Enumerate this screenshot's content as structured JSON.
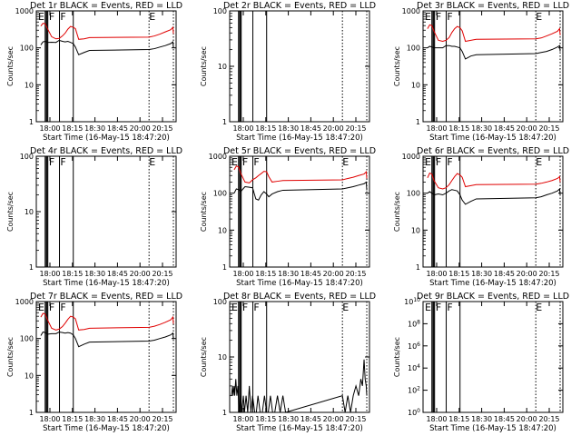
{
  "figure": {
    "title_suffix": " BLACK = Events, RED = LLD",
    "xlabel": "Start Time (16-May-15 18:47:20)",
    "ylabel": "Counts/sec",
    "colors": {
      "events": "#000000",
      "lld": "#e00000",
      "axis": "#000000",
      "background": "#ffffff"
    }
  },
  "chart_data": [
    {
      "type": "line",
      "detector": "Det 1r",
      "title": "Det 1r BLACK = Events, RED = LLD",
      "xlim": [
        17.917,
        20.5
      ],
      "yscale": "log",
      "ylim": [
        1,
        1000
      ],
      "x_ticks": [
        "18:00",
        "18:15",
        "18:30",
        "18:45",
        "20:00",
        "20:15"
      ],
      "y_ticks": [
        "1",
        "10",
        "100",
        "1000"
      ],
      "markers": {
        "E": [
          17.95,
          20.0
        ],
        "F": [
          18.15,
          18.36
        ]
      },
      "solid_lines": [
        18.08,
        18.1,
        18.115,
        18.13,
        18.345,
        18.6
      ],
      "dotted_lines": [
        20.0,
        20.45
      ],
      "series": [
        {
          "name": "Events",
          "x": [
            18.0,
            18.04,
            18.08,
            18.12,
            18.2,
            18.28,
            18.34,
            18.4,
            18.45,
            18.5,
            18.55,
            18.6,
            18.64,
            18.7,
            18.8,
            18.9,
            20.0,
            20.1,
            20.2,
            20.3,
            20.4,
            20.44,
            20.45
          ],
          "y": [
            120,
            145,
            150,
            140,
            142,
            140,
            160,
            150,
            145,
            150,
            140,
            130,
            105,
            65,
            75,
            85,
            90,
            95,
            105,
            115,
            130,
            145,
            100
          ]
        },
        {
          "name": "LLD",
          "x": [
            18.0,
            18.04,
            18.08,
            18.12,
            18.2,
            18.28,
            18.34,
            18.4,
            18.45,
            18.5,
            18.55,
            18.6,
            18.64,
            18.7,
            18.8,
            18.9,
            20.0,
            20.1,
            20.2,
            20.3,
            20.4,
            20.44,
            20.45
          ],
          "y": [
            390,
            460,
            450,
            340,
            200,
            175,
            180,
            210,
            250,
            320,
            380,
            360,
            330,
            170,
            175,
            190,
            195,
            210,
            235,
            270,
            310,
            360,
            240
          ]
        }
      ]
    },
    {
      "type": "line",
      "detector": "Det 2r",
      "title": "Det 2r BLACK = Events, RED = LLD",
      "xlim": [
        17.917,
        20.5
      ],
      "yscale": "log",
      "ylim": [
        1,
        100
      ],
      "x_ticks": [
        "18:00",
        "18:15",
        "18:30",
        "18:45",
        "20:00",
        "20:15"
      ],
      "y_ticks": [
        "1",
        "10",
        "100"
      ],
      "markers": {},
      "solid_lines": [
        18.08,
        18.1,
        18.115,
        18.13,
        18.345,
        18.6
      ],
      "dotted_lines": [
        20.0,
        20.45
      ],
      "series": []
    },
    {
      "type": "line",
      "detector": "Det 3r",
      "title": "Det 3r BLACK = Events, RED = LLD",
      "xlim": [
        17.917,
        20.5
      ],
      "yscale": "log",
      "ylim": [
        1,
        1000
      ],
      "x_ticks": [
        "18:00",
        "18:15",
        "18:30",
        "18:45",
        "20:00",
        "20:15"
      ],
      "y_ticks": [
        "1",
        "10",
        "100",
        "1000"
      ],
      "markers": {
        "E": [
          17.95,
          20.0
        ],
        "F": [
          18.15,
          18.36
        ]
      },
      "solid_lines": [
        18.08,
        18.1,
        18.115,
        18.13,
        18.345,
        18.6
      ],
      "dotted_lines": [
        20.0,
        20.45
      ],
      "series": [
        {
          "name": "Events",
          "x": [
            18.0,
            18.04,
            18.08,
            18.12,
            18.2,
            18.28,
            18.34,
            18.4,
            18.45,
            18.5,
            18.55,
            18.6,
            18.64,
            18.7,
            18.8,
            18.9,
            20.0,
            20.1,
            20.2,
            20.3,
            20.4,
            20.44,
            20.45
          ],
          "y": [
            100,
            110,
            105,
            100,
            100,
            100,
            115,
            115,
            110,
            110,
            105,
            100,
            80,
            50,
            60,
            65,
            70,
            75,
            80,
            90,
            105,
            115,
            80
          ]
        },
        {
          "name": "LLD",
          "x": [
            18.0,
            18.04,
            18.08,
            18.12,
            18.2,
            18.28,
            18.34,
            18.4,
            18.45,
            18.5,
            18.55,
            18.6,
            18.64,
            18.7,
            18.8,
            18.9,
            20.0,
            20.1,
            20.2,
            20.3,
            20.4,
            20.44,
            20.45
          ],
          "y": [
            330,
            420,
            400,
            280,
            160,
            150,
            160,
            190,
            260,
            330,
            380,
            350,
            290,
            150,
            160,
            170,
            175,
            185,
            210,
            240,
            280,
            330,
            220
          ]
        }
      ]
    },
    {
      "type": "line",
      "detector": "Det 4r",
      "title": "Det 4r BLACK = Events, RED = LLD",
      "xlim": [
        17.917,
        20.5
      ],
      "yscale": "log",
      "ylim": [
        1,
        100
      ],
      "x_ticks": [
        "18:00",
        "18:15",
        "18:30",
        "18:45",
        "20:00",
        "20:15"
      ],
      "y_ticks": [
        "1",
        "10",
        "100"
      ],
      "markers": {
        "E": [
          20.0
        ],
        "F": [
          18.15,
          18.36
        ]
      },
      "solid_lines": [
        18.08,
        18.1,
        18.115,
        18.13,
        18.345,
        18.6
      ],
      "dotted_lines": [
        20.0,
        20.45
      ],
      "series": []
    },
    {
      "type": "line",
      "detector": "Det 5r",
      "title": "Det 5r BLACK = Events, RED = LLD",
      "xlim": [
        17.917,
        20.5
      ],
      "yscale": "log",
      "ylim": [
        1,
        1000
      ],
      "x_ticks": [
        "18:00",
        "18:15",
        "18:30",
        "18:45",
        "20:00",
        "20:15"
      ],
      "y_ticks": [
        "1",
        "10",
        "100",
        "1000"
      ],
      "markers": {
        "E": [
          17.95,
          20.0
        ],
        "F": [
          18.15,
          18.36
        ]
      },
      "solid_lines": [
        18.08,
        18.1,
        18.115,
        18.13,
        18.345,
        18.6
      ],
      "dotted_lines": [
        20.0,
        20.45
      ],
      "series": [
        {
          "name": "Events",
          "x": [
            18.0,
            18.04,
            18.08,
            18.12,
            18.2,
            18.28,
            18.34,
            18.4,
            18.45,
            18.5,
            18.55,
            18.6,
            18.64,
            18.7,
            18.8,
            18.9,
            20.0,
            20.1,
            20.2,
            20.3,
            20.4,
            20.44,
            20.45
          ],
          "y": [
            100,
            130,
            125,
            110,
            150,
            145,
            140,
            70,
            65,
            90,
            110,
            95,
            80,
            95,
            110,
            120,
            130,
            140,
            150,
            165,
            180,
            200,
            120
          ]
        },
        {
          "name": "LLD",
          "x": [
            18.0,
            18.04,
            18.08,
            18.12,
            18.2,
            18.28,
            18.34,
            18.4,
            18.45,
            18.5,
            18.55,
            18.6,
            18.64,
            18.7,
            18.8,
            18.9,
            20.0,
            20.1,
            20.2,
            20.3,
            20.4,
            20.44,
            20.45
          ],
          "y": [
            430,
            540,
            520,
            350,
            200,
            190,
            230,
            260,
            300,
            340,
            390,
            380,
            280,
            200,
            210,
            220,
            230,
            250,
            270,
            300,
            330,
            380,
            250
          ]
        }
      ]
    },
    {
      "type": "line",
      "detector": "Det 6r",
      "title": "Det 6r BLACK = Events, RED = LLD",
      "xlim": [
        17.917,
        20.5
      ],
      "yscale": "log",
      "ylim": [
        1,
        1000
      ],
      "x_ticks": [
        "18:00",
        "18:15",
        "18:30",
        "18:45",
        "20:00",
        "20:15"
      ],
      "y_ticks": [
        "1",
        "10",
        "100",
        "1000"
      ],
      "markers": {
        "E": [
          17.95,
          20.0
        ],
        "F": [
          18.15,
          18.36
        ]
      },
      "solid_lines": [
        18.08,
        18.1,
        18.115,
        18.13,
        18.345,
        18.6
      ],
      "dotted_lines": [
        20.0,
        20.45
      ],
      "series": [
        {
          "name": "Events",
          "x": [
            18.0,
            18.04,
            18.08,
            18.12,
            18.2,
            18.28,
            18.34,
            18.4,
            18.45,
            18.5,
            18.55,
            18.6,
            18.64,
            18.7,
            18.8,
            18.9,
            20.0,
            20.1,
            20.2,
            20.3,
            20.4,
            20.44,
            20.45
          ],
          "y": [
            100,
            110,
            100,
            90,
            95,
            90,
            100,
            115,
            125,
            120,
            115,
            90,
            65,
            50,
            60,
            70,
            75,
            80,
            90,
            100,
            115,
            130,
            90
          ]
        },
        {
          "name": "LLD",
          "x": [
            18.0,
            18.04,
            18.08,
            18.12,
            18.2,
            18.28,
            18.34,
            18.4,
            18.45,
            18.5,
            18.55,
            18.6,
            18.64,
            18.7,
            18.8,
            18.9,
            20.0,
            20.1,
            20.2,
            20.3,
            20.4,
            20.44,
            20.45
          ],
          "y": [
            260,
            350,
            330,
            220,
            140,
            130,
            140,
            170,
            220,
            280,
            340,
            310,
            270,
            150,
            160,
            170,
            175,
            185,
            200,
            220,
            250,
            280,
            200
          ]
        }
      ]
    },
    {
      "type": "line",
      "detector": "Det 7r",
      "title": "Det 7r BLACK = Events, RED = LLD",
      "xlim": [
        17.917,
        20.5
      ],
      "yscale": "log",
      "ylim": [
        1,
        1000
      ],
      "x_ticks": [
        "18:00",
        "18:15",
        "18:30",
        "18:45",
        "20:00",
        "20:15"
      ],
      "y_ticks": [
        "1",
        "10",
        "100",
        "1000"
      ],
      "markers": {
        "E": [
          17.95
        ],
        "F": [
          18.15,
          18.36
        ]
      },
      "solid_lines": [
        18.08,
        18.1,
        18.115,
        18.13,
        18.345,
        18.6
      ],
      "dotted_lines": [
        20.0,
        20.45
      ],
      "series": [
        {
          "name": "Events",
          "x": [
            18.0,
            18.04,
            18.08,
            18.12,
            18.2,
            18.28,
            18.34,
            18.4,
            18.45,
            18.5,
            18.55,
            18.6,
            18.64,
            18.7,
            18.8,
            18.9,
            20.0,
            20.1,
            20.2,
            20.3,
            20.4,
            20.44,
            20.45
          ],
          "y": [
            120,
            150,
            145,
            130,
            135,
            135,
            150,
            145,
            140,
            145,
            140,
            125,
            100,
            60,
            70,
            80,
            85,
            90,
            100,
            110,
            125,
            140,
            95
          ]
        },
        {
          "name": "LLD",
          "x": [
            18.0,
            18.04,
            18.08,
            18.12,
            18.2,
            18.28,
            18.34,
            18.4,
            18.45,
            18.5,
            18.55,
            18.6,
            18.64,
            18.7,
            18.8,
            18.9,
            20.0,
            20.1,
            20.2,
            20.3,
            20.4,
            20.44,
            20.45
          ],
          "y": [
            380,
            480,
            460,
            330,
            190,
            170,
            180,
            210,
            260,
            330,
            400,
            380,
            340,
            170,
            175,
            190,
            200,
            215,
            240,
            275,
            320,
            380,
            250
          ]
        }
      ]
    },
    {
      "type": "line",
      "detector": "Det 8r",
      "title": "Det 8r BLACK = Events, RED = LLD",
      "xlim": [
        17.917,
        20.5
      ],
      "yscale": "log",
      "ylim": [
        1,
        100
      ],
      "x_ticks": [
        "18:00",
        "18:15",
        "18:30",
        "18:45",
        "20:00",
        "20:15"
      ],
      "y_ticks": [
        "1",
        "10",
        "100"
      ],
      "markers": {
        "E": [
          17.95,
          20.0
        ],
        "F": [
          18.15,
          18.36
        ]
      },
      "solid_lines": [
        18.08,
        18.1,
        18.115,
        18.13,
        18.345,
        18.6
      ],
      "dotted_lines": [
        20.0,
        20.45
      ],
      "series": [
        {
          "name": "Events",
          "x": [
            17.95,
            17.97,
            17.98,
            18.0,
            18.01,
            18.03,
            18.05,
            18.07,
            18.09,
            18.12,
            18.14,
            18.17,
            18.19,
            18.22,
            18.25,
            18.28,
            18.31,
            18.34,
            18.38,
            18.41,
            18.44,
            18.48,
            18.52,
            18.56,
            18.6,
            18.63,
            18.67,
            18.71,
            18.75,
            18.8,
            18.85,
            18.9,
            18.95,
            20.0,
            20.05,
            20.1,
            20.15,
            20.2,
            20.25,
            20.3,
            20.34,
            20.37,
            20.4,
            20.42,
            20.44,
            20.45
          ],
          "y": [
            2,
            3,
            2,
            3,
            2,
            4,
            2,
            3,
            1,
            2,
            1,
            2,
            1,
            2,
            1,
            3,
            1,
            2,
            1,
            1,
            2,
            1,
            1,
            2,
            1,
            1,
            2,
            1,
            1,
            2,
            1,
            2,
            1,
            2,
            1,
            2,
            1,
            2,
            3,
            2,
            4,
            3,
            9,
            4,
            3,
            2
          ]
        }
      ]
    },
    {
      "type": "line",
      "detector": "Det 9r",
      "title": "Det 9r BLACK = Events, RED = LLD",
      "xlim": [
        17.917,
        20.5
      ],
      "yscale": "log",
      "ylim": [
        1,
        10000000000.0
      ],
      "x_ticks": [
        "18:00",
        "18:15",
        "18:30",
        "18:45",
        "20:00",
        "20:15"
      ],
      "y_ticks": [
        "10^0",
        "10^2",
        "10^4",
        "10^6",
        "10^8",
        "10^10"
      ],
      "markers": {
        "E": [
          17.95,
          20.0
        ],
        "F": [
          18.15,
          18.36
        ]
      },
      "solid_lines": [
        18.08,
        18.1,
        18.115,
        18.13,
        18.345,
        18.6
      ],
      "dotted_lines": [
        20.0,
        20.45
      ],
      "series": []
    }
  ]
}
